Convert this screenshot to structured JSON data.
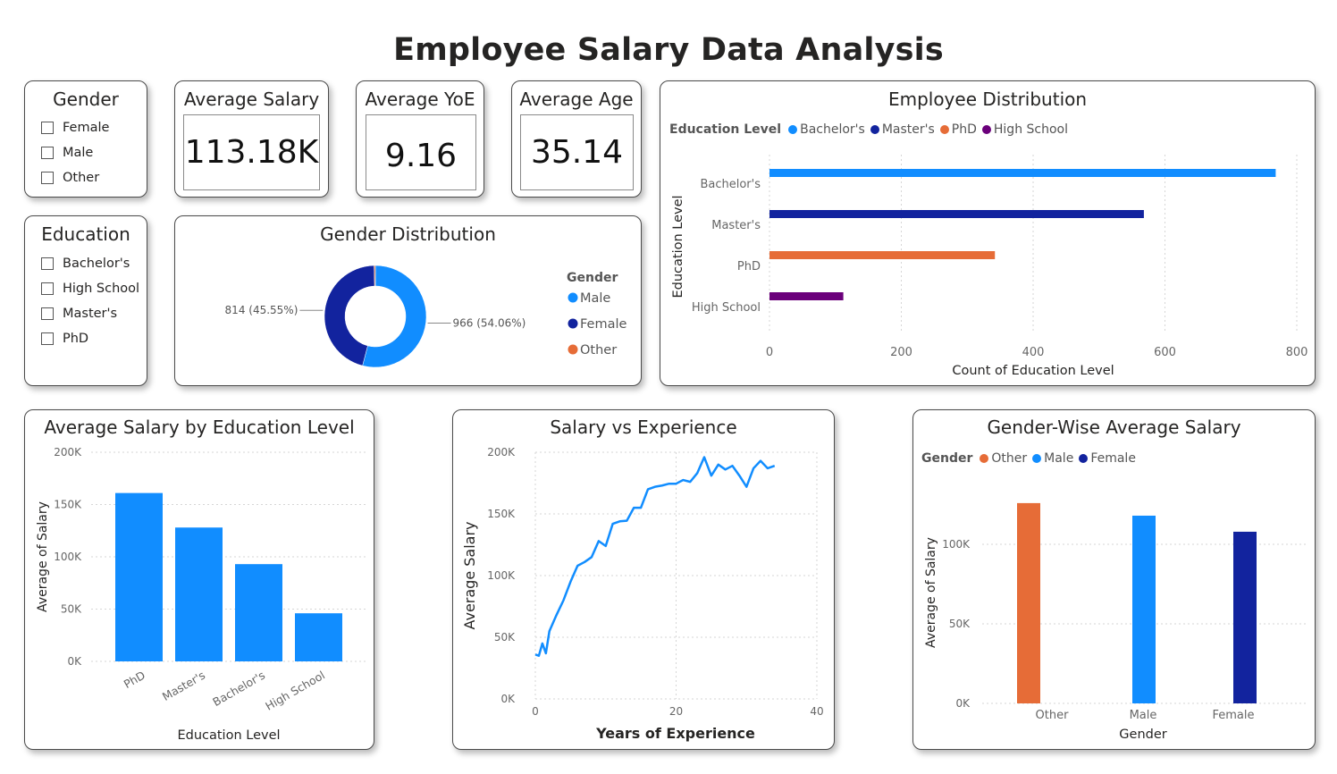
{
  "title": "Employee Salary Data Analysis",
  "colors": {
    "bachelors": "#118DFF",
    "masters": "#12239E",
    "phd": "#E66C37",
    "high_school": "#6B007B",
    "male": "#118DFF",
    "female": "#12239E",
    "other": "#E66C37"
  },
  "slicers": {
    "gender": {
      "title": "Gender",
      "items": [
        "Female",
        "Male",
        "Other"
      ]
    },
    "education": {
      "title": "Education",
      "items": [
        "Bachelor's",
        "High School",
        "Master's",
        "PhD"
      ]
    }
  },
  "kpis": {
    "avg_salary": {
      "label": "Average Salary",
      "value": "113.18K"
    },
    "avg_yoe": {
      "label": "Average YoE",
      "value": "9.16"
    },
    "avg_age": {
      "label": "Average Age",
      "value": "35.14"
    }
  },
  "chart_data": [
    {
      "id": "gender_distribution",
      "type": "pie",
      "title": "Gender Distribution",
      "legend_title": "Gender",
      "legend_position": "right",
      "slices": [
        {
          "name": "Male",
          "value": 966,
          "label": "966 (54.06%)",
          "color": "#118DFF"
        },
        {
          "name": "Female",
          "value": 814,
          "label": "814 (45.55%)",
          "color": "#12239E"
        },
        {
          "name": "Other",
          "value": 7,
          "label": "",
          "color": "#E66C37"
        }
      ]
    },
    {
      "id": "employee_distribution",
      "type": "bar",
      "orientation": "horizontal",
      "title": "Employee Distribution",
      "legend_title": "Education Level",
      "legend_position": "top-left",
      "categories": [
        "Bachelor's",
        "Master's",
        "PhD",
        "High School"
      ],
      "values": [
        768,
        568,
        342,
        112
      ],
      "colors": [
        "#118DFF",
        "#12239E",
        "#E66C37",
        "#6B007B"
      ],
      "xlabel": "Count of Education Level",
      "ylabel": "Education Level",
      "xlim": [
        0,
        800
      ],
      "xticks": [
        "0",
        "200",
        "400",
        "600",
        "800"
      ],
      "grid": true
    },
    {
      "id": "salary_by_education",
      "type": "bar",
      "title": "Average Salary by Education Level",
      "categories": [
        "PhD",
        "Master's",
        "Bachelor's",
        "High School"
      ],
      "values": [
        161000,
        128000,
        93000,
        46000
      ],
      "xlabel": "Education Level",
      "ylabel": "Average of Salary",
      "ylim": [
        0,
        200000
      ],
      "yticks": [
        "0K",
        "50K",
        "100K",
        "150K",
        "200K"
      ],
      "grid": true
    },
    {
      "id": "salary_vs_experience",
      "type": "line",
      "title": "Salary vs Experience",
      "x": [
        0,
        0.5,
        1,
        1.5,
        2,
        3,
        4,
        5,
        6,
        7,
        8,
        9,
        10,
        11,
        12,
        13,
        14,
        15,
        16,
        17,
        18,
        19,
        20,
        21,
        22,
        23,
        24,
        25,
        26,
        27,
        28,
        29,
        30,
        31,
        32,
        33,
        34
      ],
      "y": [
        36000,
        35000,
        45000,
        37000,
        55000,
        68000,
        80000,
        95000,
        108000,
        111000,
        115000,
        128000,
        124000,
        142000,
        144000,
        144500,
        155000,
        155000,
        170000,
        172000,
        173000,
        174500,
        174500,
        177500,
        176000,
        183000,
        196000,
        181000,
        190000,
        186000,
        189000,
        181000,
        172000,
        187000,
        193000,
        187000,
        189000
      ],
      "xlabel": "Years of Experience",
      "ylabel": "Average Salary",
      "xlim": [
        0,
        40
      ],
      "xticks": [
        "0",
        "20",
        "40"
      ],
      "ylim": [
        0,
        200000
      ],
      "yticks": [
        "0K",
        "50K",
        "100K",
        "150K",
        "200K"
      ],
      "color": "#118DFF",
      "grid": true
    },
    {
      "id": "gender_salary",
      "type": "bar",
      "title": "Gender-Wise Average Salary",
      "legend_title": "Gender",
      "legend_position": "top-left",
      "categories": [
        "Other",
        "Male",
        "Female"
      ],
      "values": [
        125900,
        118000,
        107900
      ],
      "colors": [
        "#E66C37",
        "#118DFF",
        "#12239E"
      ],
      "xlabel": "Gender",
      "ylabel": "Average of Salary",
      "ylim": [
        0,
        150000
      ],
      "yticks": [
        "0K",
        "50K",
        "100K"
      ],
      "grid": true
    }
  ]
}
